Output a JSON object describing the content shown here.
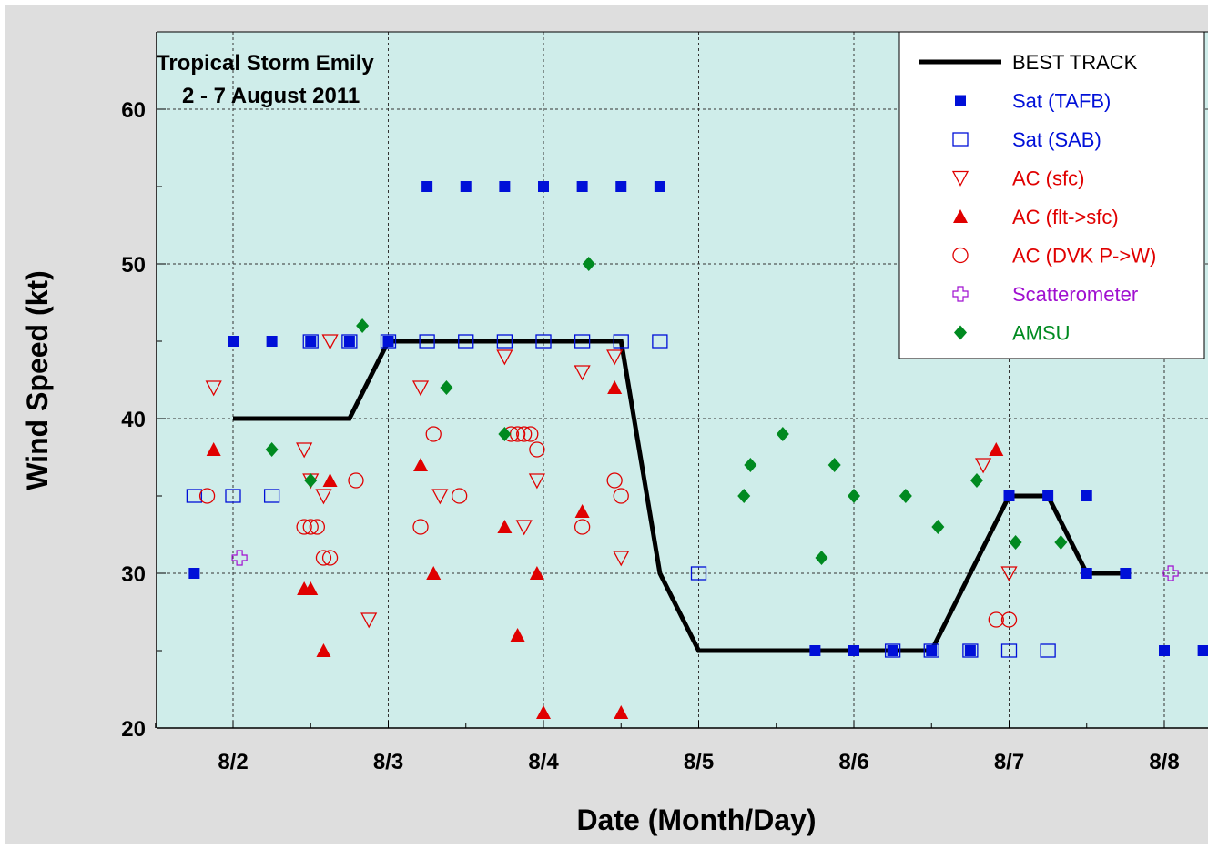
{
  "chart_data": {
    "type": "scatter",
    "title": "Tropical Storm Emily",
    "subtitle": "2 - 7 August 2011",
    "xlabel": "Date (Month/Day)",
    "ylabel": "Wind Speed (kt)",
    "xlim": [
      "2011-08-01 17:00",
      "2011-08-08 06:00"
    ],
    "ylim": [
      20,
      65
    ],
    "x_ticks": [
      "8/2",
      "8/3",
      "8/4",
      "8/5",
      "8/6",
      "8/7",
      "8/8"
    ],
    "y_ticks": [
      "20",
      "30",
      "40",
      "50",
      "60"
    ],
    "grid": true,
    "legend_position": "top-right",
    "colors": {
      "background": "#cfedea",
      "frame": "#dedede",
      "best_track": "#000000",
      "sat": "#0010d8",
      "ac": "#e00000",
      "scatterometer": "#a010d0",
      "amsu": "#008a20"
    },
    "series": [
      {
        "name": "BEST TRACK",
        "marker": "line",
        "points": [
          [
            "2011-08-02 00:00",
            40
          ],
          [
            "2011-08-02 18:00",
            40
          ],
          [
            "2011-08-03 00:00",
            45
          ],
          [
            "2011-08-04 06:00",
            45
          ],
          [
            "2011-08-04 12:00",
            45
          ],
          [
            "2011-08-04 18:00",
            30
          ],
          [
            "2011-08-05 00:00",
            25
          ],
          [
            "2011-08-06 12:00",
            25
          ],
          [
            "2011-08-07 00:00",
            35
          ],
          [
            "2011-08-07 06:00",
            35
          ],
          [
            "2011-08-07 12:00",
            30
          ],
          [
            "2011-08-07 18:00",
            30
          ]
        ]
      },
      {
        "name": "Sat (TAFB)",
        "marker": "square-filled",
        "points": [
          [
            "2011-08-01 18:00",
            30
          ],
          [
            "2011-08-02 00:00",
            45
          ],
          [
            "2011-08-02 06:00",
            45
          ],
          [
            "2011-08-02 12:00",
            45
          ],
          [
            "2011-08-02 18:00",
            45
          ],
          [
            "2011-08-03 00:00",
            45
          ],
          [
            "2011-08-03 06:00",
            55
          ],
          [
            "2011-08-03 12:00",
            55
          ],
          [
            "2011-08-03 18:00",
            55
          ],
          [
            "2011-08-04 00:00",
            55
          ],
          [
            "2011-08-04 06:00",
            55
          ],
          [
            "2011-08-04 12:00",
            55
          ],
          [
            "2011-08-04 18:00",
            55
          ],
          [
            "2011-08-05 18:00",
            25
          ],
          [
            "2011-08-06 00:00",
            25
          ],
          [
            "2011-08-06 06:00",
            25
          ],
          [
            "2011-08-06 12:00",
            25
          ],
          [
            "2011-08-06 18:00",
            25
          ],
          [
            "2011-08-07 00:00",
            35
          ],
          [
            "2011-08-07 06:00",
            35
          ],
          [
            "2011-08-07 12:00",
            35
          ],
          [
            "2011-08-07 12:00",
            30
          ],
          [
            "2011-08-07 18:00",
            30
          ],
          [
            "2011-08-08 00:00",
            25
          ],
          [
            "2011-08-08 06:00",
            25
          ]
        ]
      },
      {
        "name": "Sat (SAB)",
        "marker": "square-open",
        "points": [
          [
            "2011-08-01 18:00",
            35
          ],
          [
            "2011-08-02 00:00",
            35
          ],
          [
            "2011-08-02 06:00",
            35
          ],
          [
            "2011-08-02 12:00",
            45
          ],
          [
            "2011-08-02 18:00",
            45
          ],
          [
            "2011-08-03 00:00",
            45
          ],
          [
            "2011-08-03 06:00",
            45
          ],
          [
            "2011-08-03 12:00",
            45
          ],
          [
            "2011-08-03 18:00",
            45
          ],
          [
            "2011-08-04 00:00",
            45
          ],
          [
            "2011-08-04 06:00",
            45
          ],
          [
            "2011-08-04 12:00",
            45
          ],
          [
            "2011-08-04 18:00",
            45
          ],
          [
            "2011-08-05 00:00",
            30
          ],
          [
            "2011-08-06 06:00",
            25
          ],
          [
            "2011-08-06 12:00",
            25
          ],
          [
            "2011-08-06 18:00",
            25
          ],
          [
            "2011-08-07 00:00",
            25
          ],
          [
            "2011-08-07 06:00",
            25
          ]
        ]
      },
      {
        "name": "AC (sfc)",
        "marker": "triangle-down-open",
        "points": [
          [
            "2011-08-01 21:00",
            42
          ],
          [
            "2011-08-02 11:00",
            38
          ],
          [
            "2011-08-02 12:00",
            36
          ],
          [
            "2011-08-02 14:00",
            35
          ],
          [
            "2011-08-02 15:00",
            45
          ],
          [
            "2011-08-02 21:00",
            27
          ],
          [
            "2011-08-03 05:00",
            42
          ],
          [
            "2011-08-03 08:00",
            35
          ],
          [
            "2011-08-03 18:00",
            44
          ],
          [
            "2011-08-03 21:00",
            33
          ],
          [
            "2011-08-03 23:00",
            36
          ],
          [
            "2011-08-04 06:00",
            43
          ],
          [
            "2011-08-04 11:00",
            44
          ],
          [
            "2011-08-04 12:00",
            31
          ],
          [
            "2011-08-06 20:00",
            37
          ],
          [
            "2011-08-07 00:00",
            30
          ]
        ]
      },
      {
        "name": "AC (flt->sfc)",
        "marker": "triangle-up-filled",
        "points": [
          [
            "2011-08-01 21:00",
            38
          ],
          [
            "2011-08-02 11:00",
            29
          ],
          [
            "2011-08-02 12:00",
            29
          ],
          [
            "2011-08-02 14:00",
            25
          ],
          [
            "2011-08-02 15:00",
            36
          ],
          [
            "2011-08-03 05:00",
            37
          ],
          [
            "2011-08-03 07:00",
            30
          ],
          [
            "2011-08-03 18:00",
            33
          ],
          [
            "2011-08-03 20:00",
            26
          ],
          [
            "2011-08-03 23:00",
            30
          ],
          [
            "2011-08-04 00:00",
            21
          ],
          [
            "2011-08-04 06:00",
            34
          ],
          [
            "2011-08-04 11:00",
            42
          ],
          [
            "2011-08-04 12:00",
            21
          ],
          [
            "2011-08-06 22:00",
            38
          ]
        ]
      },
      {
        "name": "AC (DVK P->W)",
        "marker": "circle-open",
        "points": [
          [
            "2011-08-01 20:00",
            35
          ],
          [
            "2011-08-02 11:00",
            33
          ],
          [
            "2011-08-02 12:00",
            33
          ],
          [
            "2011-08-02 13:00",
            33
          ],
          [
            "2011-08-02 14:00",
            31
          ],
          [
            "2011-08-02 15:00",
            31
          ],
          [
            "2011-08-02 19:00",
            36
          ],
          [
            "2011-08-03 05:00",
            33
          ],
          [
            "2011-08-03 07:00",
            39
          ],
          [
            "2011-08-03 11:00",
            35
          ],
          [
            "2011-08-03 19:00",
            39
          ],
          [
            "2011-08-03 20:00",
            39
          ],
          [
            "2011-08-03 21:00",
            39
          ],
          [
            "2011-08-03 22:00",
            39
          ],
          [
            "2011-08-03 23:00",
            38
          ],
          [
            "2011-08-04 06:00",
            33
          ],
          [
            "2011-08-04 11:00",
            36
          ],
          [
            "2011-08-04 12:00",
            35
          ],
          [
            "2011-08-06 22:00",
            27
          ],
          [
            "2011-08-07 00:00",
            27
          ]
        ]
      },
      {
        "name": "Scatterometer",
        "marker": "plus-open",
        "points": [
          [
            "2011-08-02 01:00",
            31
          ],
          [
            "2011-08-08 01:00",
            30
          ]
        ]
      },
      {
        "name": "AMSU",
        "marker": "diamond-filled",
        "points": [
          [
            "2011-08-02 06:00",
            38
          ],
          [
            "2011-08-02 12:00",
            36
          ],
          [
            "2011-08-02 20:00",
            46
          ],
          [
            "2011-08-03 09:00",
            42
          ],
          [
            "2011-08-03 18:00",
            39
          ],
          [
            "2011-08-04 07:00",
            50
          ],
          [
            "2011-08-05 07:00",
            35
          ],
          [
            "2011-08-05 08:00",
            37
          ],
          [
            "2011-08-05 13:00",
            39
          ],
          [
            "2011-08-05 19:00",
            31
          ],
          [
            "2011-08-05 21:00",
            37
          ],
          [
            "2011-08-06 00:00",
            35
          ],
          [
            "2011-08-06 08:00",
            35
          ],
          [
            "2011-08-06 13:00",
            33
          ],
          [
            "2011-08-06 19:00",
            36
          ],
          [
            "2011-08-07 01:00",
            32
          ],
          [
            "2011-08-07 08:00",
            32
          ]
        ]
      }
    ]
  }
}
